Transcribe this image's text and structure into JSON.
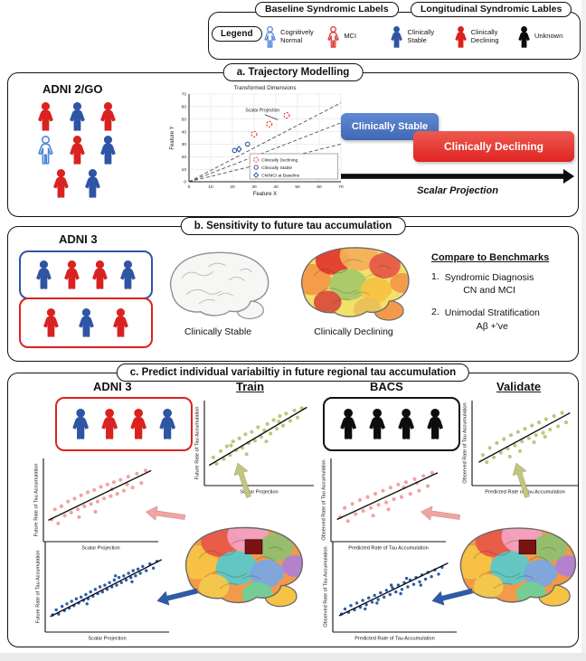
{
  "colors": {
    "blue": "#2f55a4",
    "red": "#d92320",
    "black": "#0d0d0d",
    "blue_outline": "#4f86d8",
    "red_outline": "#e03127",
    "olive": "#c2c57c",
    "pink": "#f2a3a1",
    "deep_blue": "#2d5ca6",
    "flag_blue": "#3f67b5",
    "flag_red": "#e02421"
  },
  "brain_palettes": {
    "hot": [
      "#f2e06a",
      "#f2994a",
      "#e23b2e",
      "#f2b05a",
      "#e85848",
      "#a6c96a",
      "#f6c344",
      "#f2994a",
      "#d94f3d",
      "#e8c05a"
    ],
    "parc": [
      "#f2994a",
      "#f6c344",
      "#e85848",
      "#f2a0c0",
      "#8fbf6f",
      "#5bc8c8",
      "#7aa7e0",
      "#b07fd4",
      "#f2c94c",
      "#6fcf97"
    ],
    "lesion": "#7b1313"
  },
  "legend": {
    "baseline_title": "Baseline Syndromic Labels",
    "longitudinal_title": "Longitudinal Syndromic Lables",
    "legend_label": "Legend",
    "items": [
      {
        "label": "Cognitively Normal",
        "color_key": "blue_outline",
        "style": "outline",
        "icon": "cognitively-normal-icon"
      },
      {
        "label": "MCI",
        "color_key": "red_outline",
        "style": "outline",
        "icon": "mci-icon"
      },
      {
        "label": "Clinically Stable",
        "color_key": "blue",
        "style": "filled",
        "icon": "clinically-stable-icon"
      },
      {
        "label": "Clinically Declining",
        "color_key": "red",
        "style": "filled",
        "icon": "clinically-declining-icon"
      },
      {
        "label": "Unknown",
        "color_key": "black",
        "style": "filled",
        "icon": "unknown-icon"
      }
    ]
  },
  "panel_a": {
    "title": "a. Trajectory Modelling",
    "cohort": "ADNI 2/GO",
    "people": [
      "red",
      "blue",
      "red",
      "blue_outline",
      "red",
      "blue",
      "red",
      "blue"
    ],
    "stable_label": "Clinically Stable",
    "declining_label": "Clinically Declining",
    "arrow_label": "Scalar Projection"
  },
  "panel_b": {
    "title": "b. Sensitivity to future tau accumulation",
    "cohort": "ADNI 3",
    "group1": {
      "border": "blue",
      "people": [
        "blue",
        "red",
        "red",
        "blue"
      ]
    },
    "group2": {
      "border": "red",
      "people": [
        "red",
        "blue",
        "red"
      ]
    },
    "stable_brain_label": "Clinically Stable",
    "declining_brain_label": "Clinically Declining",
    "benchmarks": {
      "heading": "Compare to Benchmarks",
      "items": [
        {
          "num": "1.",
          "line1": "Syndromic Diagnosis",
          "line2": "CN and MCI"
        },
        {
          "num": "2.",
          "line1": "Unimodal Stratification",
          "line2": "Aβ +'ve"
        }
      ]
    }
  },
  "panel_c": {
    "title": "c. Predict individual variabiltiy in future regional tau accumulation",
    "train_cohort": "ADNI 3",
    "train_label": "Train",
    "validate_cohort": "BACS",
    "validate_label": "Validate",
    "train_group": {
      "border": "red",
      "people": [
        "blue",
        "red",
        "red",
        "blue"
      ]
    },
    "validate_group": {
      "border": "black",
      "people": [
        "black",
        "black",
        "black",
        "black"
      ]
    }
  },
  "chart_data": [
    {
      "id": "trajectory",
      "type": "scatter",
      "title": "Transformed Dimensions",
      "xlabel": "Feature X",
      "ylabel": "Feature Y",
      "xlim": [
        0,
        70
      ],
      "ylim": [
        0,
        70
      ],
      "ticks": [
        0,
        10,
        20,
        30,
        40,
        50,
        60,
        70
      ],
      "grid": true,
      "annotation": "Scalar Projection",
      "rays": [
        [
          70,
          63
        ],
        [
          70,
          30
        ],
        [
          70,
          47
        ]
      ],
      "series": [
        {
          "name": "Clinically Declining",
          "marker": "dashed-circle",
          "color": "red",
          "points": [
            [
              30,
              38
            ],
            [
              37,
              46
            ],
            [
              45,
              53
            ]
          ]
        },
        {
          "name": "Clinically Stable",
          "marker": "circle",
          "color": "blue",
          "points": [
            [
              21,
              25
            ],
            [
              27,
              30
            ]
          ]
        },
        {
          "name": "CN/MCI at Baseline",
          "marker": "diamond",
          "color": "blue",
          "points": [
            [
              23,
              26
            ]
          ]
        }
      ]
    },
    {
      "id": "train-top",
      "type": "scatter",
      "color": "olive",
      "units": "normalized_0_1",
      "xlabel": "Scalar Projection",
      "ylabel": "Future Rate of Tau Accumulation",
      "fit": [
        0.02,
        0.22,
        0.96,
        0.95
      ],
      "points": [
        [
          0.06,
          0.32
        ],
        [
          0.09,
          0.24
        ],
        [
          0.13,
          0.4
        ],
        [
          0.16,
          0.3
        ],
        [
          0.19,
          0.46
        ],
        [
          0.22,
          0.35
        ],
        [
          0.25,
          0.52
        ],
        [
          0.28,
          0.41
        ],
        [
          0.31,
          0.56
        ],
        [
          0.34,
          0.44
        ],
        [
          0.37,
          0.61
        ],
        [
          0.4,
          0.5
        ],
        [
          0.43,
          0.64
        ],
        [
          0.46,
          0.53
        ],
        [
          0.49,
          0.7
        ],
        [
          0.52,
          0.58
        ],
        [
          0.55,
          0.66
        ],
        [
          0.58,
          0.74
        ],
        [
          0.61,
          0.62
        ],
        [
          0.64,
          0.79
        ],
        [
          0.67,
          0.68
        ],
        [
          0.7,
          0.84
        ],
        [
          0.73,
          0.72
        ],
        [
          0.76,
          0.87
        ],
        [
          0.8,
          0.78
        ],
        [
          0.84,
          0.91
        ],
        [
          0.87,
          0.82
        ],
        [
          0.91,
          0.94
        ],
        [
          0.38,
          0.36
        ],
        [
          0.57,
          0.52
        ],
        [
          0.23,
          0.47
        ],
        [
          0.69,
          0.77
        ]
      ]
    },
    {
      "id": "train-middle",
      "type": "scatter",
      "color": "pink",
      "units": "normalized_0_1",
      "xlabel": "Scalar Projection",
      "ylabel": "Future Rate of Tau Accumulation",
      "fit": [
        0.02,
        0.24,
        0.96,
        0.88
      ],
      "points": [
        [
          0.05,
          0.25
        ],
        [
          0.08,
          0.38
        ],
        [
          0.11,
          0.2
        ],
        [
          0.14,
          0.42
        ],
        [
          0.17,
          0.3
        ],
        [
          0.2,
          0.48
        ],
        [
          0.23,
          0.34
        ],
        [
          0.26,
          0.52
        ],
        [
          0.29,
          0.38
        ],
        [
          0.32,
          0.56
        ],
        [
          0.35,
          0.42
        ],
        [
          0.38,
          0.6
        ],
        [
          0.41,
          0.45
        ],
        [
          0.44,
          0.63
        ],
        [
          0.47,
          0.48
        ],
        [
          0.5,
          0.67
        ],
        [
          0.53,
          0.52
        ],
        [
          0.56,
          0.7
        ],
        [
          0.59,
          0.55
        ],
        [
          0.62,
          0.73
        ],
        [
          0.65,
          0.58
        ],
        [
          0.68,
          0.76
        ],
        [
          0.71,
          0.62
        ],
        [
          0.75,
          0.8
        ],
        [
          0.79,
          0.66
        ],
        [
          0.83,
          0.84
        ],
        [
          0.87,
          0.72
        ],
        [
          0.91,
          0.88
        ],
        [
          0.3,
          0.28
        ],
        [
          0.6,
          0.64
        ],
        [
          0.45,
          0.35
        ],
        [
          0.74,
          0.7
        ]
      ]
    },
    {
      "id": "train-bottom",
      "type": "scatter",
      "color": "deep_blue",
      "units": "normalized_0_1",
      "xlabel": "Scalar Projection",
      "ylabel": "Future Rate of Tau Accumulation",
      "fit": [
        0.02,
        0.15,
        0.96,
        0.82
      ],
      "points": [
        [
          0.04,
          0.17
        ],
        [
          0.07,
          0.23
        ],
        [
          0.09,
          0.18
        ],
        [
          0.12,
          0.27
        ],
        [
          0.14,
          0.22
        ],
        [
          0.16,
          0.3
        ],
        [
          0.18,
          0.25
        ],
        [
          0.2,
          0.33
        ],
        [
          0.22,
          0.28
        ],
        [
          0.24,
          0.36
        ],
        [
          0.26,
          0.31
        ],
        [
          0.28,
          0.38
        ],
        [
          0.3,
          0.34
        ],
        [
          0.32,
          0.41
        ],
        [
          0.34,
          0.36
        ],
        [
          0.36,
          0.44
        ],
        [
          0.38,
          0.39
        ],
        [
          0.4,
          0.47
        ],
        [
          0.42,
          0.42
        ],
        [
          0.44,
          0.5
        ],
        [
          0.46,
          0.44
        ],
        [
          0.48,
          0.52
        ],
        [
          0.5,
          0.47
        ],
        [
          0.52,
          0.55
        ],
        [
          0.54,
          0.5
        ],
        [
          0.56,
          0.58
        ],
        [
          0.58,
          0.52
        ],
        [
          0.6,
          0.61
        ],
        [
          0.62,
          0.55
        ],
        [
          0.64,
          0.63
        ],
        [
          0.66,
          0.58
        ],
        [
          0.68,
          0.66
        ],
        [
          0.7,
          0.61
        ],
        [
          0.72,
          0.69
        ],
        [
          0.74,
          0.63
        ],
        [
          0.76,
          0.71
        ],
        [
          0.78,
          0.66
        ],
        [
          0.8,
          0.74
        ],
        [
          0.83,
          0.69
        ],
        [
          0.86,
          0.77
        ],
        [
          0.89,
          0.72
        ],
        [
          0.92,
          0.8
        ],
        [
          0.33,
          0.3
        ],
        [
          0.57,
          0.63
        ],
        [
          0.71,
          0.56
        ]
      ]
    },
    {
      "id": "validate-top",
      "type": "scatter",
      "color": "olive",
      "units": "normalized_0_1",
      "xlabel": "Predicted Rate of Tau Accumulation",
      "ylabel": "Observed Rate of Tau Accumulation",
      "fit": [
        0.04,
        0.26,
        0.95,
        0.88
      ],
      "points": [
        [
          0.08,
          0.35
        ],
        [
          0.12,
          0.26
        ],
        [
          0.15,
          0.44
        ],
        [
          0.19,
          0.32
        ],
        [
          0.22,
          0.5
        ],
        [
          0.26,
          0.38
        ],
        [
          0.29,
          0.55
        ],
        [
          0.33,
          0.43
        ],
        [
          0.36,
          0.6
        ],
        [
          0.4,
          0.47
        ],
        [
          0.43,
          0.64
        ],
        [
          0.47,
          0.52
        ],
        [
          0.5,
          0.68
        ],
        [
          0.54,
          0.56
        ],
        [
          0.57,
          0.72
        ],
        [
          0.61,
          0.6
        ],
        [
          0.64,
          0.76
        ],
        [
          0.68,
          0.63
        ],
        [
          0.71,
          0.8
        ],
        [
          0.75,
          0.67
        ],
        [
          0.79,
          0.84
        ],
        [
          0.83,
          0.71
        ],
        [
          0.87,
          0.88
        ],
        [
          0.91,
          0.76
        ],
        [
          0.35,
          0.33
        ],
        [
          0.59,
          0.51
        ],
        [
          0.45,
          0.4
        ],
        [
          0.7,
          0.58
        ]
      ]
    },
    {
      "id": "validate-middle",
      "type": "scatter",
      "color": "pink",
      "units": "normalized_0_1",
      "xlabel": "Predicted Rate of Tau Accumulation",
      "ylabel": "Observed Rate of Tau Accumulation",
      "fit": [
        0.03,
        0.25,
        0.95,
        0.85
      ],
      "points": [
        [
          0.06,
          0.28
        ],
        [
          0.1,
          0.4
        ],
        [
          0.13,
          0.23
        ],
        [
          0.17,
          0.45
        ],
        [
          0.2,
          0.32
        ],
        [
          0.24,
          0.5
        ],
        [
          0.27,
          0.36
        ],
        [
          0.31,
          0.54
        ],
        [
          0.34,
          0.4
        ],
        [
          0.38,
          0.58
        ],
        [
          0.41,
          0.44
        ],
        [
          0.45,
          0.62
        ],
        [
          0.48,
          0.47
        ],
        [
          0.52,
          0.66
        ],
        [
          0.55,
          0.51
        ],
        [
          0.59,
          0.7
        ],
        [
          0.62,
          0.54
        ],
        [
          0.66,
          0.73
        ],
        [
          0.7,
          0.58
        ],
        [
          0.74,
          0.77
        ],
        [
          0.78,
          0.62
        ],
        [
          0.82,
          0.81
        ],
        [
          0.86,
          0.68
        ],
        [
          0.9,
          0.85
        ],
        [
          0.36,
          0.3
        ],
        [
          0.64,
          0.66
        ],
        [
          0.5,
          0.38
        ],
        [
          0.76,
          0.72
        ]
      ]
    },
    {
      "id": "validate-bottom",
      "type": "scatter",
      "color": "deep_blue",
      "units": "normalized_0_1",
      "xlabel": "Predicted Rate of Tau Accumulation",
      "ylabel": "Observed Rate of Tau Accumulation",
      "fit": [
        0.03,
        0.16,
        0.95,
        0.78
      ],
      "points": [
        [
          0.05,
          0.18
        ],
        [
          0.08,
          0.24
        ],
        [
          0.11,
          0.2
        ],
        [
          0.13,
          0.28
        ],
        [
          0.16,
          0.23
        ],
        [
          0.18,
          0.31
        ],
        [
          0.21,
          0.26
        ],
        [
          0.23,
          0.34
        ],
        [
          0.26,
          0.29
        ],
        [
          0.28,
          0.37
        ],
        [
          0.31,
          0.32
        ],
        [
          0.33,
          0.4
        ],
        [
          0.36,
          0.35
        ],
        [
          0.38,
          0.43
        ],
        [
          0.41,
          0.38
        ],
        [
          0.43,
          0.46
        ],
        [
          0.46,
          0.41
        ],
        [
          0.48,
          0.49
        ],
        [
          0.51,
          0.44
        ],
        [
          0.53,
          0.52
        ],
        [
          0.56,
          0.47
        ],
        [
          0.58,
          0.55
        ],
        [
          0.61,
          0.5
        ],
        [
          0.63,
          0.58
        ],
        [
          0.66,
          0.53
        ],
        [
          0.68,
          0.61
        ],
        [
          0.71,
          0.56
        ],
        [
          0.73,
          0.64
        ],
        [
          0.76,
          0.59
        ],
        [
          0.78,
          0.67
        ],
        [
          0.81,
          0.62
        ],
        [
          0.84,
          0.7
        ],
        [
          0.87,
          0.65
        ],
        [
          0.9,
          0.73
        ],
        [
          0.35,
          0.31
        ],
        [
          0.6,
          0.6
        ],
        [
          0.72,
          0.52
        ],
        [
          0.25,
          0.24
        ],
        [
          0.47,
          0.52
        ],
        [
          0.55,
          0.42
        ]
      ]
    }
  ]
}
